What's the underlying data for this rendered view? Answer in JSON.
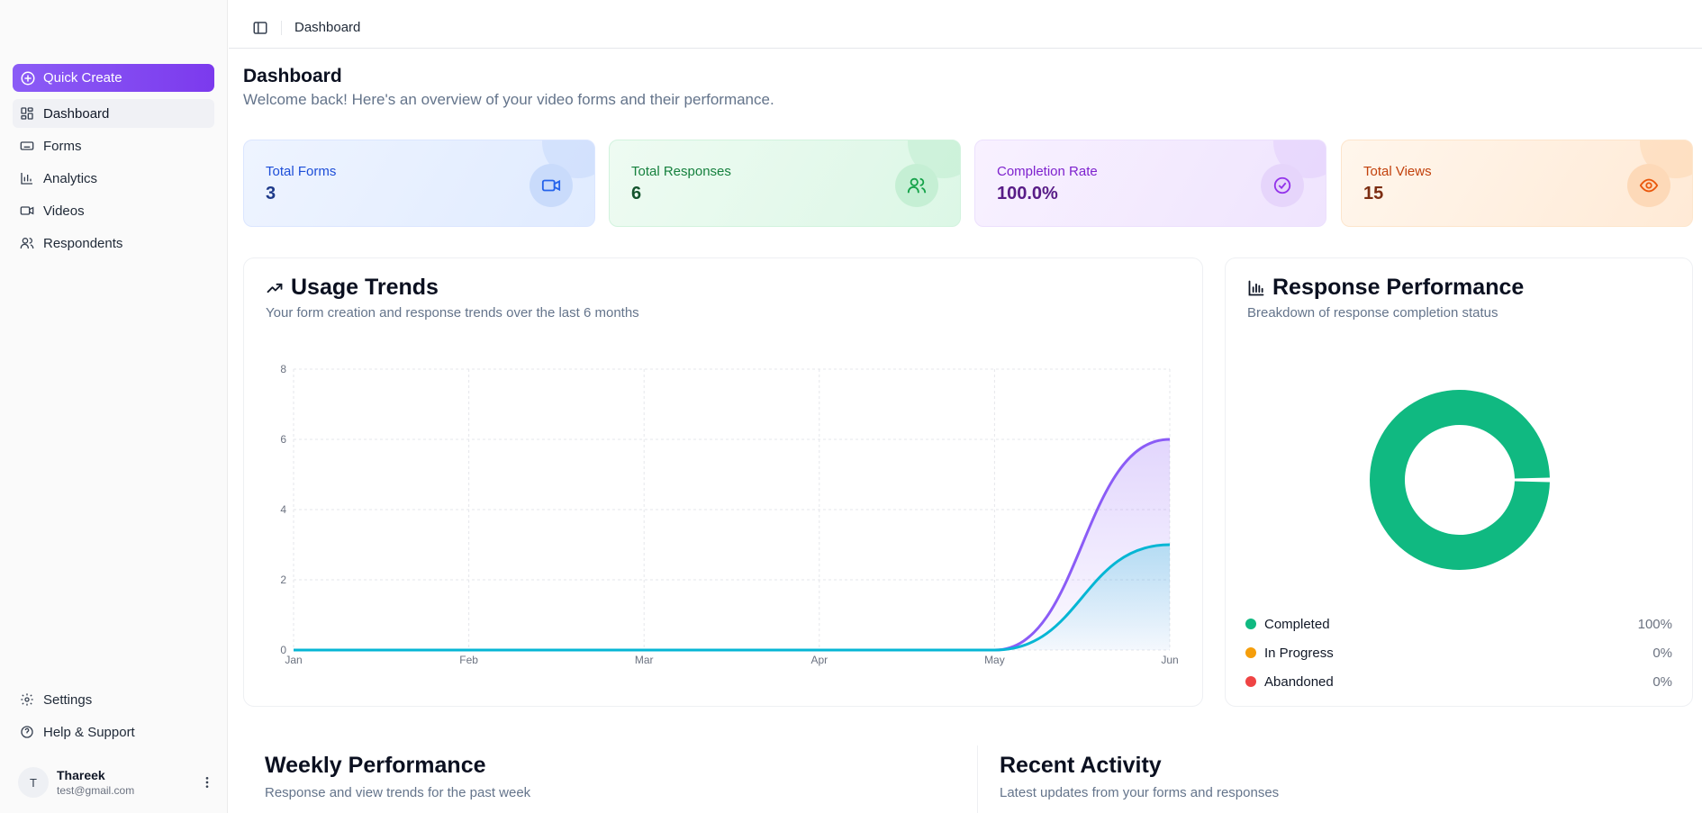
{
  "sidebar": {
    "quick_create": "Quick Create",
    "nav": [
      {
        "label": "Dashboard",
        "icon": "dashboard-icon",
        "active": true
      },
      {
        "label": "Forms",
        "icon": "forms-icon"
      },
      {
        "label": "Analytics",
        "icon": "analytics-icon"
      },
      {
        "label": "Videos",
        "icon": "video-icon"
      },
      {
        "label": "Respondents",
        "icon": "users-icon"
      }
    ],
    "bottom_nav": [
      {
        "label": "Settings",
        "icon": "gear-icon"
      },
      {
        "label": "Help & Support",
        "icon": "help-icon"
      }
    ],
    "user": {
      "initial": "T",
      "name": "Thareek",
      "email": "test@gmail.com"
    }
  },
  "topbar": {
    "breadcrumb": "Dashboard"
  },
  "header": {
    "title": "Dashboard",
    "subtitle": "Welcome back! Here's an overview of your video forms and their performance."
  },
  "stats": [
    {
      "label": "Total Forms",
      "value": "3",
      "icon": "video-icon",
      "color": "#2563eb"
    },
    {
      "label": "Total Responses",
      "value": "6",
      "icon": "users-icon",
      "color": "#16a34a"
    },
    {
      "label": "Completion Rate",
      "value": "100.0%",
      "icon": "check-circle-icon",
      "color": "#9333ea"
    },
    {
      "label": "Total Views",
      "value": "15",
      "icon": "eye-icon",
      "color": "#ea580c"
    }
  ],
  "trends": {
    "title": "Usage Trends",
    "subtitle": "Your form creation and response trends over the last 6 months"
  },
  "performance": {
    "title": "Response Performance",
    "subtitle": "Breakdown of response completion status",
    "legend": [
      {
        "label": "Completed",
        "pct": "100%",
        "color": "#10b981"
      },
      {
        "label": "In Progress",
        "pct": "0%",
        "color": "#f59e0b"
      },
      {
        "label": "Abandoned",
        "pct": "0%",
        "color": "#ef4444"
      }
    ]
  },
  "weekly": {
    "title": "Weekly Performance",
    "subtitle": "Response and view trends for the past week"
  },
  "activity": {
    "title": "Recent Activity",
    "subtitle": "Latest updates from your forms and responses"
  },
  "chart_data": [
    {
      "type": "area",
      "categories": [
        "Jan",
        "Feb",
        "Mar",
        "Apr",
        "May",
        "Jun"
      ],
      "ylim": [
        0,
        8
      ],
      "yticks": [
        0,
        2,
        4,
        6,
        8
      ],
      "grid": true,
      "series": [
        {
          "values": [
            0,
            0,
            0,
            0,
            0,
            6
          ],
          "color": "#8b5cf6"
        },
        {
          "values": [
            0,
            0,
            0,
            0,
            0,
            3
          ],
          "color": "#06b6d4"
        }
      ]
    },
    {
      "type": "pie",
      "categories": [
        "Completed",
        "In Progress",
        "Abandoned"
      ],
      "values": [
        100,
        0,
        0
      ],
      "colors": [
        "#10b981",
        "#f59e0b",
        "#ef4444"
      ]
    }
  ]
}
